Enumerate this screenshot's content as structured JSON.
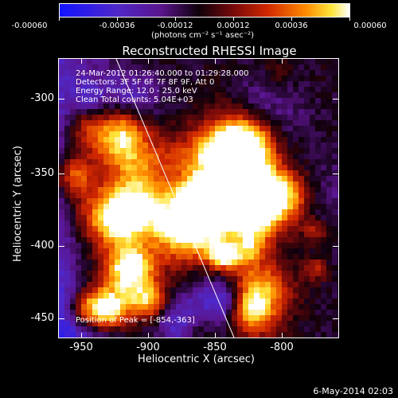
{
  "colorbar": {
    "tick_labels": [
      "-0.00060",
      "-0.00036",
      "-0.00012",
      "0.00012",
      "0.00036",
      "0.00060"
    ],
    "units": "(photons cm⁻² s⁻¹ asec⁻²)"
  },
  "plot": {
    "title": "Reconstructed RHESSI Image",
    "info_lines": [
      "24-Mar-2012 01:26:40.000 to 01:29:28.000",
      "Detectors: 3F 5F 6F 7F 8F 9F, Att 0",
      "Energy Range: 12.0 - 25.0 keV",
      "Clean    Total counts: 5.04E+03"
    ],
    "peak_text": "Position of Peak = [-854,-363]",
    "xlabel": "Heliocentric X (arcsec)",
    "ylabel": "Heliocentric Y (arcsec)",
    "xticks": [
      "-950",
      "-900",
      "-850",
      "-800"
    ],
    "yticks": [
      "-300",
      "-350",
      "-400",
      "-450"
    ]
  },
  "footer": {
    "timestamp": "6-May-2014 02:03"
  }
}
